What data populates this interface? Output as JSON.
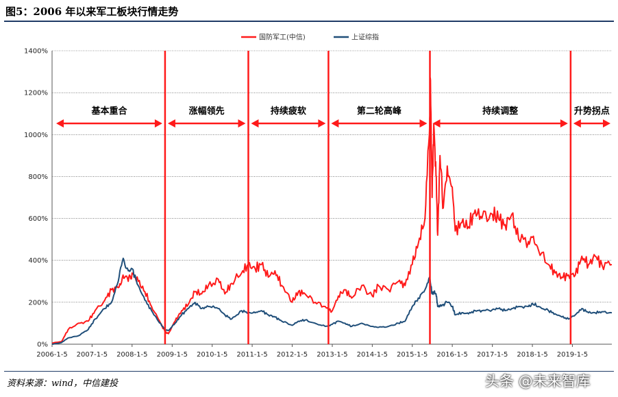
{
  "header": {
    "title": "图5：2006 年以来军工板块行情走势"
  },
  "footer": {
    "source": "资料来源：wind，中信建投",
    "watermark": "头条 @未来智库"
  },
  "colors": {
    "defense": "#ff1a1a",
    "shanghai": "#1f4e79",
    "divider": "#ff1a1a",
    "arrow": "#ff1a1a"
  },
  "chart_data": {
    "type": "line",
    "title": "",
    "xlabel": "",
    "ylabel": "",
    "ylim": [
      0,
      1400
    ],
    "y_ticks": [
      0,
      200,
      400,
      600,
      800,
      1000,
      1200,
      1400
    ],
    "y_tick_labels": [
      "0%",
      "200%",
      "400%",
      "600%",
      "800%",
      "1000%",
      "1200%",
      "1400%"
    ],
    "x_ticks": [
      "2006-1-5",
      "2007-1-5",
      "2008-1-5",
      "2009-1-5",
      "2010-1-5",
      "2011-1-5",
      "2012-1-5",
      "2013-1-5",
      "2014-1-5",
      "2015-1-5",
      "2016-1-5",
      "2017-1-5",
      "2018-1-5",
      "2019-1-5"
    ],
    "xlim": [
      "2006-01-05",
      "2019-12-31"
    ],
    "grid": "horizontal",
    "legend": "top-center",
    "series": [
      {
        "name": "国防军工(中信)",
        "color": "#ff1a1a",
        "points": [
          [
            "2006-01-05",
            5
          ],
          [
            "2006-04-01",
            12
          ],
          [
            "2006-06-01",
            70
          ],
          [
            "2006-09-01",
            100
          ],
          [
            "2006-12-01",
            110
          ],
          [
            "2007-02-01",
            160
          ],
          [
            "2007-05-01",
            210
          ],
          [
            "2007-07-01",
            260
          ],
          [
            "2007-09-01",
            270
          ],
          [
            "2007-10-15",
            330
          ],
          [
            "2007-12-01",
            300
          ],
          [
            "2008-01-05",
            340
          ],
          [
            "2008-03-01",
            300
          ],
          [
            "2008-05-01",
            250
          ],
          [
            "2008-07-01",
            180
          ],
          [
            "2008-09-01",
            120
          ],
          [
            "2008-11-01",
            60
          ],
          [
            "2008-12-01",
            50
          ],
          [
            "2009-02-01",
            110
          ],
          [
            "2009-04-01",
            160
          ],
          [
            "2009-06-01",
            190
          ],
          [
            "2009-08-01",
            250
          ],
          [
            "2009-10-01",
            240
          ],
          [
            "2009-12-01",
            280
          ],
          [
            "2010-03-01",
            310
          ],
          [
            "2010-05-01",
            240
          ],
          [
            "2010-07-01",
            290
          ],
          [
            "2010-10-01",
            340
          ],
          [
            "2010-12-01",
            380
          ],
          [
            "2011-02-01",
            360
          ],
          [
            "2011-04-01",
            380
          ],
          [
            "2011-06-01",
            320
          ],
          [
            "2011-08-01",
            350
          ],
          [
            "2011-10-01",
            280
          ],
          [
            "2012-01-05",
            200
          ],
          [
            "2012-03-01",
            250
          ],
          [
            "2012-05-01",
            240
          ],
          [
            "2012-08-01",
            200
          ],
          [
            "2012-11-01",
            180
          ],
          [
            "2013-01-05",
            160
          ],
          [
            "2013-03-01",
            230
          ],
          [
            "2013-05-01",
            260
          ],
          [
            "2013-07-01",
            220
          ],
          [
            "2013-10-01",
            280
          ],
          [
            "2014-01-05",
            230
          ],
          [
            "2014-03-01",
            280
          ],
          [
            "2014-06-01",
            260
          ],
          [
            "2014-09-01",
            300
          ],
          [
            "2014-11-01",
            280
          ],
          [
            "2015-01-05",
            380
          ],
          [
            "2015-03-01",
            480
          ],
          [
            "2015-05-01",
            600
          ],
          [
            "2015-06-10",
            1000
          ],
          [
            "2015-06-20",
            1260
          ],
          [
            "2015-07-05",
            700
          ],
          [
            "2015-07-20",
            1050
          ],
          [
            "2015-08-10",
            800
          ],
          [
            "2015-08-25",
            520
          ],
          [
            "2015-09-15",
            900
          ],
          [
            "2015-10-15",
            650
          ],
          [
            "2015-11-20",
            850
          ],
          [
            "2016-01-05",
            750
          ],
          [
            "2016-02-01",
            540
          ],
          [
            "2016-04-01",
            580
          ],
          [
            "2016-06-01",
            560
          ],
          [
            "2016-08-01",
            640
          ],
          [
            "2016-10-01",
            600
          ],
          [
            "2017-01-05",
            620
          ],
          [
            "2017-03-01",
            600
          ],
          [
            "2017-05-01",
            570
          ],
          [
            "2017-07-01",
            620
          ],
          [
            "2017-09-01",
            500
          ],
          [
            "2017-12-01",
            490
          ],
          [
            "2018-01-05",
            510
          ],
          [
            "2018-03-01",
            450
          ],
          [
            "2018-06-01",
            380
          ],
          [
            "2018-08-01",
            340
          ],
          [
            "2018-10-01",
            320
          ],
          [
            "2018-12-01",
            330
          ],
          [
            "2019-02-01",
            330
          ],
          [
            "2019-04-01",
            420
          ],
          [
            "2019-06-01",
            380
          ],
          [
            "2019-08-01",
            420
          ],
          [
            "2019-10-01",
            380
          ],
          [
            "2019-12-31",
            380
          ]
        ]
      },
      {
        "name": "上证综指",
        "color": "#1f4e79",
        "points": [
          [
            "2006-01-05",
            0
          ],
          [
            "2006-04-01",
            8
          ],
          [
            "2006-06-01",
            30
          ],
          [
            "2006-09-01",
            40
          ],
          [
            "2006-12-01",
            70
          ],
          [
            "2007-02-01",
            120
          ],
          [
            "2007-05-01",
            170
          ],
          [
            "2007-07-01",
            200
          ],
          [
            "2007-09-01",
            300
          ],
          [
            "2007-10-16",
            410
          ],
          [
            "2007-12-01",
            350
          ],
          [
            "2008-01-05",
            360
          ],
          [
            "2008-03-01",
            280
          ],
          [
            "2008-05-01",
            210
          ],
          [
            "2008-07-01",
            160
          ],
          [
            "2008-09-01",
            110
          ],
          [
            "2008-11-01",
            70
          ],
          [
            "2008-12-01",
            65
          ],
          [
            "2009-02-01",
            100
          ],
          [
            "2009-04-01",
            140
          ],
          [
            "2009-06-01",
            170
          ],
          [
            "2009-08-01",
            200
          ],
          [
            "2009-10-01",
            170
          ],
          [
            "2009-12-01",
            180
          ],
          [
            "2010-03-01",
            170
          ],
          [
            "2010-05-01",
            140
          ],
          [
            "2010-07-01",
            120
          ],
          [
            "2010-10-01",
            160
          ],
          [
            "2010-12-01",
            150
          ],
          [
            "2011-02-01",
            150
          ],
          [
            "2011-04-01",
            160
          ],
          [
            "2011-06-01",
            140
          ],
          [
            "2011-08-01",
            130
          ],
          [
            "2011-10-01",
            110
          ],
          [
            "2012-01-05",
            90
          ],
          [
            "2012-03-01",
            110
          ],
          [
            "2012-05-01",
            115
          ],
          [
            "2012-08-01",
            100
          ],
          [
            "2012-11-01",
            85
          ],
          [
            "2013-01-05",
            95
          ],
          [
            "2013-03-01",
            110
          ],
          [
            "2013-05-01",
            100
          ],
          [
            "2013-07-01",
            85
          ],
          [
            "2013-10-01",
            100
          ],
          [
            "2014-01-05",
            85
          ],
          [
            "2014-03-01",
            80
          ],
          [
            "2014-06-01",
            85
          ],
          [
            "2014-09-01",
            100
          ],
          [
            "2014-11-01",
            110
          ],
          [
            "2015-01-05",
            180
          ],
          [
            "2015-03-01",
            220
          ],
          [
            "2015-05-01",
            260
          ],
          [
            "2015-06-12",
            320
          ],
          [
            "2015-07-05",
            240
          ],
          [
            "2015-07-20",
            250
          ],
          [
            "2015-08-10",
            240
          ],
          [
            "2015-08-25",
            180
          ],
          [
            "2015-09-15",
            180
          ],
          [
            "2015-10-15",
            190
          ],
          [
            "2015-11-20",
            200
          ],
          [
            "2016-01-05",
            180
          ],
          [
            "2016-02-01",
            140
          ],
          [
            "2016-04-01",
            150
          ],
          [
            "2016-06-01",
            145
          ],
          [
            "2016-08-01",
            160
          ],
          [
            "2016-10-01",
            160
          ],
          [
            "2017-01-05",
            165
          ],
          [
            "2017-03-01",
            170
          ],
          [
            "2017-05-01",
            160
          ],
          [
            "2017-07-01",
            170
          ],
          [
            "2017-09-01",
            180
          ],
          [
            "2017-12-01",
            180
          ],
          [
            "2018-01-05",
            195
          ],
          [
            "2018-03-01",
            180
          ],
          [
            "2018-06-01",
            160
          ],
          [
            "2018-08-01",
            145
          ],
          [
            "2018-10-01",
            130
          ],
          [
            "2018-12-01",
            120
          ],
          [
            "2019-02-01",
            140
          ],
          [
            "2019-04-01",
            170
          ],
          [
            "2019-06-01",
            150
          ],
          [
            "2019-08-01",
            150
          ],
          [
            "2019-10-01",
            155
          ],
          [
            "2019-12-31",
            150
          ]
        ]
      }
    ],
    "phase_dividers": [
      "2008-11-01",
      "2010-12-01",
      "2012-12-01",
      "2015-06-15",
      "2018-12-20"
    ],
    "phases": [
      {
        "label": "基本重合",
        "start": "2006-01-05",
        "end": "2008-11-01"
      },
      {
        "label": "涨幅领先",
        "start": "2008-11-01",
        "end": "2010-12-01"
      },
      {
        "label": "持续疲软",
        "start": "2010-12-01",
        "end": "2012-12-01"
      },
      {
        "label": "第二轮高峰",
        "start": "2012-12-01",
        "end": "2015-06-15"
      },
      {
        "label": "持续调整",
        "start": "2015-06-15",
        "end": "2018-12-20"
      },
      {
        "label": "升势拐点",
        "start": "2018-12-20",
        "end": "2019-12-31"
      }
    ]
  }
}
